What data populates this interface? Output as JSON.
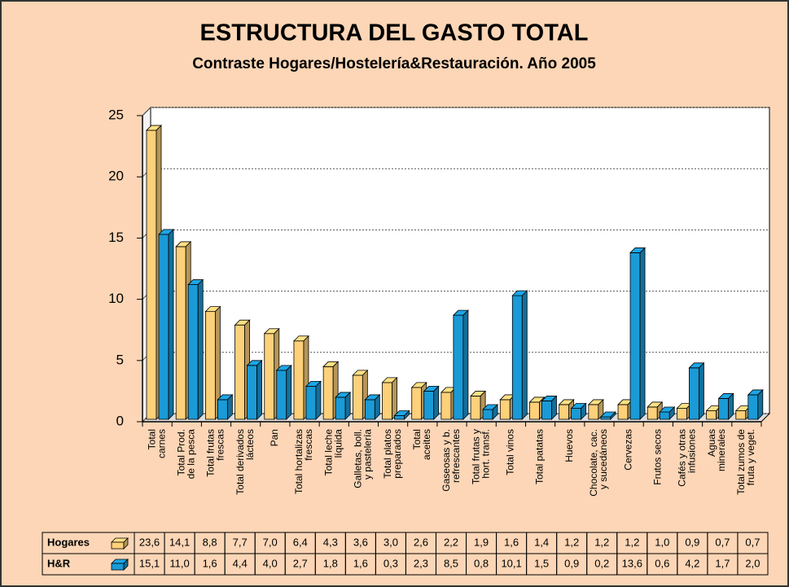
{
  "chart_data": {
    "type": "bar3d",
    "title": "ESTRUCTURA DEL GASTO TOTAL",
    "subtitle": "Contraste Hogares/Hostelería&Restauración. Año 2005",
    "categories": [
      [
        "Total",
        "carnes"
      ],
      [
        "Total Prod.",
        "de la pesca"
      ],
      [
        "Total frutas",
        "frescas"
      ],
      [
        "Total derivados",
        "lácteos"
      ],
      [
        "Pan"
      ],
      [
        "Total hortalizas",
        "frescas"
      ],
      [
        "Total leche",
        "líquida"
      ],
      [
        "Galletas, boll.",
        "y pastelería"
      ],
      [
        "Total platos",
        "preparados"
      ],
      [
        "Total",
        "aceites"
      ],
      [
        "Gaseosas y b.",
        "refrescantes"
      ],
      [
        "Total frutas y",
        "hort. transf."
      ],
      [
        "Total vinos"
      ],
      [
        "Total patatas"
      ],
      [
        "Huevos"
      ],
      [
        "Chocolate, cac.",
        "y sucedáneos"
      ],
      [
        "Cervezas"
      ],
      [
        "Frutos secos"
      ],
      [
        "Cafés y otras",
        "infusiones"
      ],
      [
        "Aguas",
        "minerales"
      ],
      [
        "Total zumos de",
        "fruta y veget."
      ]
    ],
    "series": [
      {
        "name": "Hogares",
        "color": "#fdd07a",
        "values": [
          23.6,
          14.1,
          8.8,
          7.7,
          7.0,
          6.4,
          4.3,
          3.6,
          3.0,
          2.6,
          2.2,
          1.9,
          1.6,
          1.4,
          1.2,
          1.2,
          1.2,
          1.0,
          0.9,
          0.7,
          0.7
        ],
        "value_labels": [
          "23,6",
          "14,1",
          "8,8",
          "7,7",
          "7,0",
          "6,4",
          "4,3",
          "3,6",
          "3,0",
          "2,6",
          "2,2",
          "1,9",
          "1,6",
          "1,4",
          "1,2",
          "1,2",
          "1,2",
          "1,0",
          "0,9",
          "0,7",
          "0,7"
        ]
      },
      {
        "name": "H&R",
        "color": "#1a9ad6",
        "values": [
          15.1,
          11.0,
          1.6,
          4.4,
          4.0,
          2.7,
          1.8,
          1.6,
          0.3,
          2.3,
          8.5,
          0.8,
          10.1,
          1.5,
          0.9,
          0.2,
          13.6,
          0.6,
          4.2,
          1.7,
          2.0
        ],
        "value_labels": [
          "15,1",
          "11,0",
          "1,6",
          "4,4",
          "4,0",
          "2,7",
          "1,8",
          "1,6",
          "0,3",
          "2,3",
          "8,5",
          "0,8",
          "10,1",
          "1,5",
          "0,9",
          "0,2",
          "13,6",
          "0,6",
          "4,2",
          "1,7",
          "2,0"
        ]
      }
    ],
    "ylim": [
      0,
      25
    ],
    "yticks": [
      0,
      5,
      10,
      15,
      20,
      25
    ],
    "grid": true
  }
}
